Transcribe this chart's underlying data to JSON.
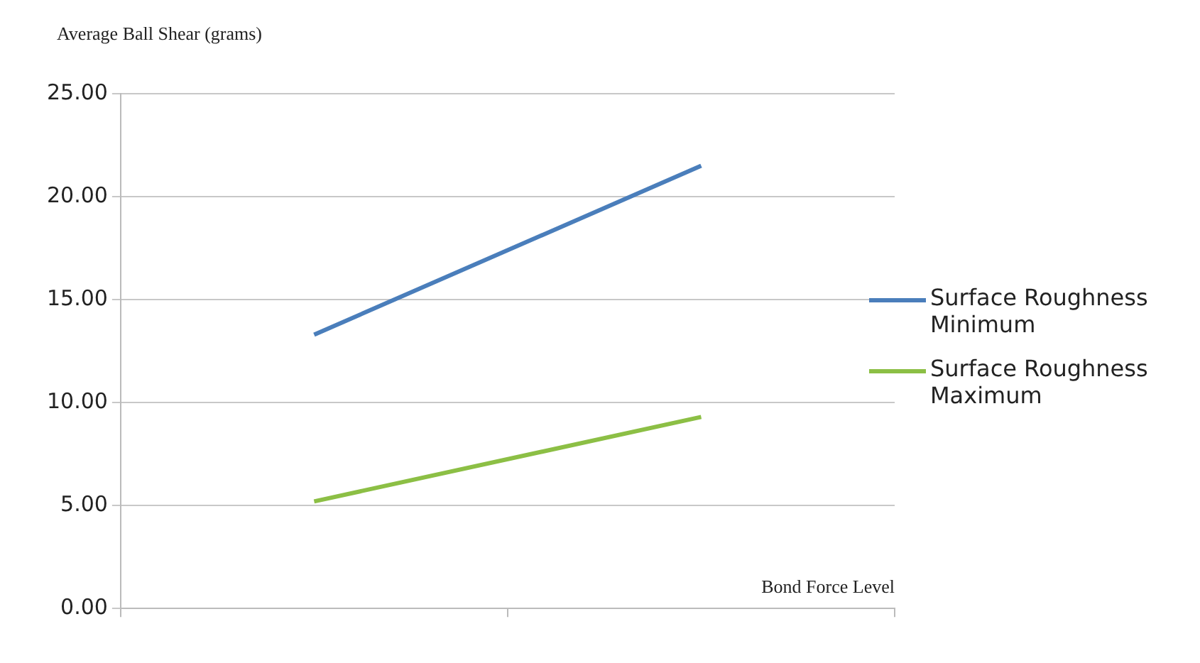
{
  "chart_data": {
    "type": "line",
    "ylabel": "Average Ball Shear (grams)",
    "xlabel": "Bond Force Level",
    "categories": [
      null,
      null
    ],
    "series": [
      {
        "name": "Surface Roughness Minimum",
        "color": "#4a7ebb",
        "values": [
          13.3,
          21.5
        ]
      },
      {
        "name": "Surface Roughness Maximum",
        "color": "#8cbf45",
        "values": [
          5.2,
          9.3
        ]
      }
    ],
    "ylim": [
      0,
      25
    ],
    "yticks": [
      {
        "value": 0,
        "label": "0.00"
      },
      {
        "value": 5,
        "label": "5.00"
      },
      {
        "value": 10,
        "label": "10.00"
      },
      {
        "value": 15,
        "label": "15.00"
      },
      {
        "value": 20,
        "label": "20.00"
      },
      {
        "value": 25,
        "label": "25.00"
      }
    ],
    "grid": "y",
    "legend": "right",
    "marker": "none",
    "line_style": "solid"
  }
}
